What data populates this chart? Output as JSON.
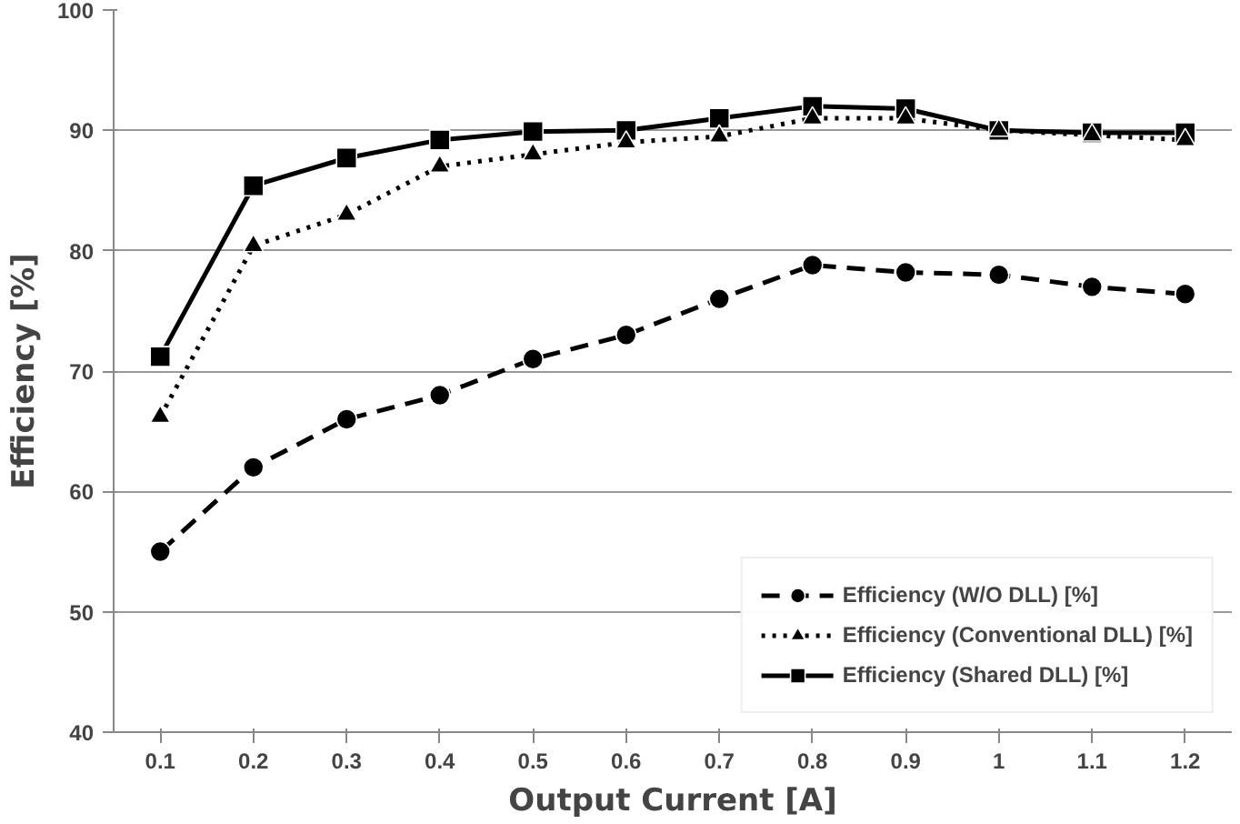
{
  "chart_data": {
    "type": "line",
    "xlabel": "Output Current [A]",
    "ylabel": "Efficiency [%]",
    "categories": [
      "0.1",
      "0.2",
      "0.3",
      "0.4",
      "0.5",
      "0.6",
      "0.7",
      "0.8",
      "0.9",
      "1",
      "1.1",
      "1.2"
    ],
    "ylim": [
      40,
      100
    ],
    "yticks": [
      40,
      50,
      60,
      70,
      80,
      90,
      100
    ],
    "grid": "y",
    "legend": "bottom right",
    "series": [
      {
        "name": "Efficiency (W/O DLL) [%]",
        "color": "#000000",
        "marker": "circle",
        "line_style": "dashed",
        "values": [
          55,
          62,
          66,
          68,
          71,
          73,
          76,
          78.8,
          78.2,
          78,
          77,
          76.4
        ]
      },
      {
        "name": "Efficiency (Conventional DLL) [%]",
        "color": "#000000",
        "marker": "triangle",
        "line_style": "dotted",
        "values": [
          66.2,
          80.4,
          83,
          87,
          88,
          89,
          89.5,
          91,
          91,
          90,
          89.6,
          89.2
        ]
      },
      {
        "name": "Efficiency (Shared DLL) [%]",
        "color": "#000000",
        "marker": "square",
        "line_style": "solid",
        "values": [
          71.2,
          85.4,
          87.7,
          89.2,
          89.9,
          90,
          91,
          92,
          91.8,
          90,
          89.8,
          89.8
        ]
      }
    ]
  }
}
